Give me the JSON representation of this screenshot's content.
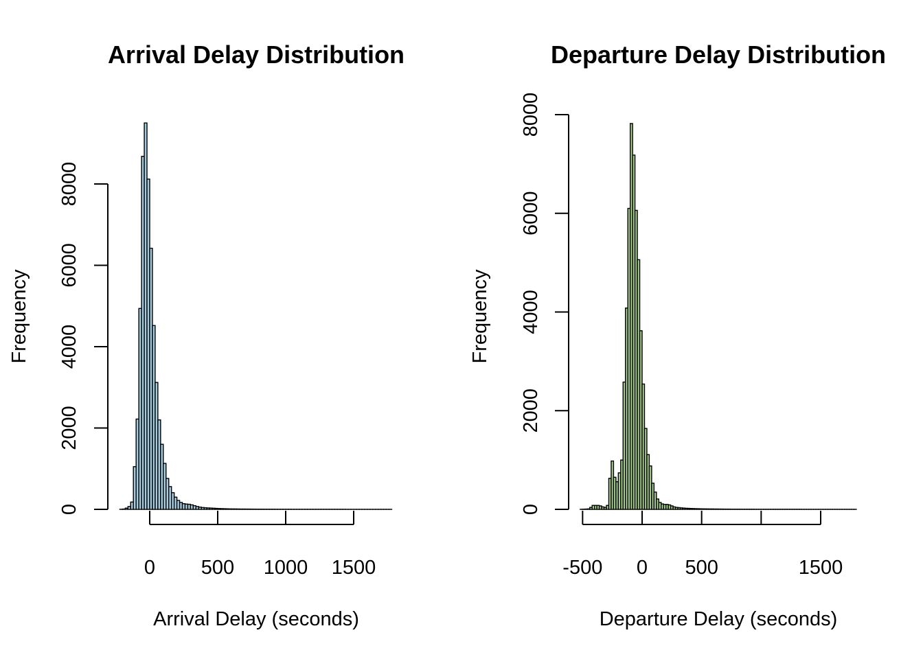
{
  "chart_data": [
    {
      "type": "bar",
      "title": "Arrival Delay Distribution",
      "xlabel": "Arrival Delay (seconds)",
      "ylabel": "Frequency",
      "fill_color": "#a6cee3",
      "xlim": [
        -300,
        1800
      ],
      "ylim": [
        0,
        9500
      ],
      "x_ticks": [
        0,
        500,
        1000,
        1500
      ],
      "x_tick_labels": [
        "0",
        "500",
        "1000",
        "1500"
      ],
      "y_ticks": [
        0,
        2000,
        4000,
        6000,
        8000
      ],
      "y_tick_labels": [
        "0",
        "2000",
        "4000",
        "6000",
        "8000"
      ],
      "bin_width": 20,
      "bin_start": -220,
      "values": [
        2,
        8,
        30,
        70,
        180,
        1050,
        2220,
        4940,
        8680,
        9500,
        8120,
        6420,
        4520,
        3120,
        2200,
        1600,
        1130,
        760,
        560,
        410,
        300,
        220,
        170,
        140,
        130,
        125,
        110,
        90,
        70,
        55,
        45,
        40,
        35,
        32,
        28,
        24,
        20,
        18,
        16,
        14,
        12,
        11,
        10,
        9,
        8,
        8,
        7,
        7,
        6,
        6,
        5,
        5,
        5,
        4,
        4,
        4,
        4,
        3,
        3,
        3,
        3,
        3,
        3,
        2,
        2,
        2,
        2,
        2,
        2,
        2,
        2,
        2,
        2,
        2,
        2,
        2,
        2,
        2,
        2,
        2,
        2,
        2,
        2,
        1,
        1,
        1,
        1,
        1,
        1,
        1,
        1,
        1,
        1,
        1,
        1,
        1,
        1,
        1,
        1,
        1
      ]
    },
    {
      "type": "bar",
      "title": "Departure Delay Distribution",
      "xlabel": "Departure Delay (seconds)",
      "ylabel": "Frequency",
      "fill_color": "#a9d18e",
      "xlim": [
        -500,
        1800
      ],
      "ylim": [
        0,
        8000
      ],
      "x_ticks": [
        -500,
        0,
        500,
        1000,
        1500
      ],
      "x_tick_labels": [
        "-500",
        "0",
        "500",
        "",
        "1500"
      ],
      "y_ticks": [
        0,
        2000,
        4000,
        6000,
        8000
      ],
      "y_tick_labels": [
        "0",
        "2000",
        "4000",
        "6000",
        "8000"
      ],
      "bin_width": 20,
      "bin_start": -520,
      "values": [
        2,
        4,
        6,
        10,
        40,
        80,
        80,
        80,
        70,
        50,
        40,
        80,
        630,
        980,
        650,
        560,
        740,
        1000,
        2580,
        4080,
        6100,
        7820,
        7180,
        6060,
        5060,
        3620,
        2540,
        1640,
        1110,
        880,
        530,
        350,
        210,
        140,
        110,
        100,
        100,
        90,
        70,
        50,
        40,
        35,
        30,
        26,
        22,
        20,
        18,
        16,
        14,
        13,
        12,
        11,
        10,
        9,
        8,
        8,
        7,
        7,
        6,
        6,
        5,
        5,
        5,
        4,
        4,
        4,
        4,
        3,
        3,
        3,
        3,
        3,
        3,
        2,
        2,
        2,
        2,
        2,
        2,
        2,
        2,
        2,
        2,
        2,
        2,
        2,
        2,
        2,
        2,
        2,
        2,
        2,
        2,
        1,
        1,
        1,
        1,
        1,
        1,
        1,
        1,
        1,
        1,
        1,
        1,
        1,
        1,
        1,
        1,
        1,
        1,
        1,
        1,
        1,
        1,
        1
      ]
    }
  ]
}
